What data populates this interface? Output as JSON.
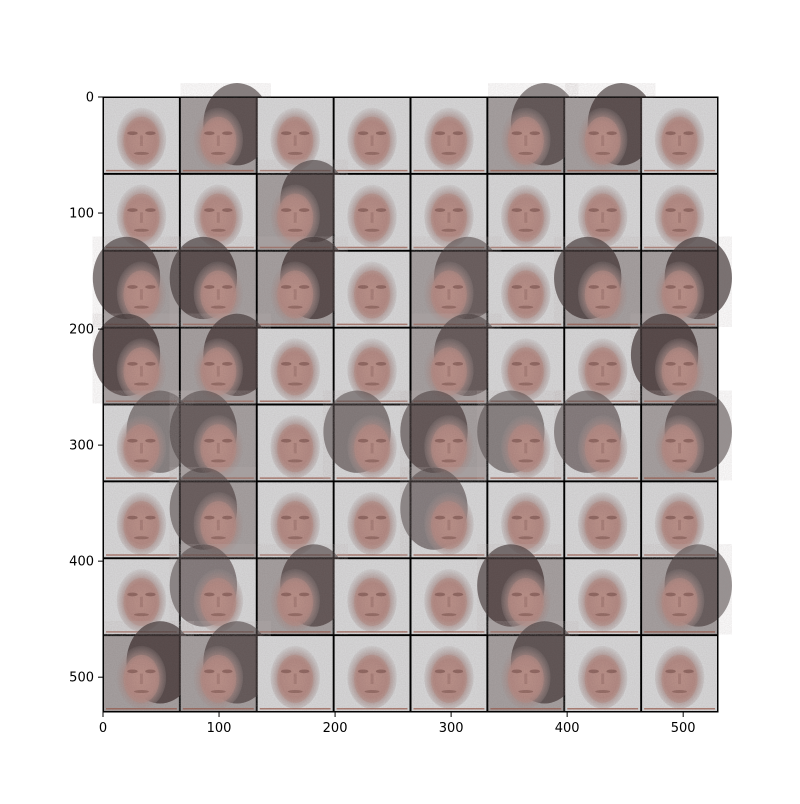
{
  "figure": {
    "image_grid": {
      "rows": 8,
      "cols": 8,
      "pixel_extent": [
        0,
        530
      ]
    },
    "x_axis": {
      "ticks": [
        "0",
        "100",
        "200",
        "300",
        "400",
        "500"
      ],
      "tick_values": [
        0,
        100,
        200,
        300,
        400,
        500
      ]
    },
    "y_axis": {
      "ticks": [
        "0",
        "100",
        "200",
        "300",
        "400",
        "500"
      ],
      "tick_values": [
        0,
        100,
        200,
        300,
        400,
        500
      ]
    },
    "colors": {
      "skin": "#b89088",
      "skin_dark": "#8a625d",
      "background_light": "#d9d9da",
      "hair_dark": "#3a2a2a",
      "mid_gray": "#a8a2a2",
      "grid_line": "#000000"
    }
  }
}
